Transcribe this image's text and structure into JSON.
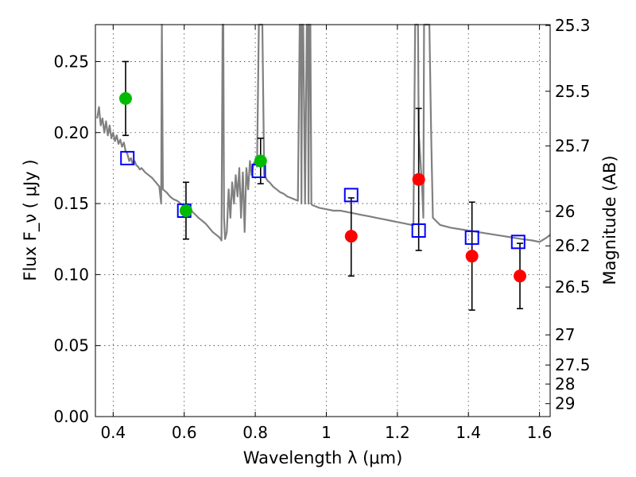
{
  "chart_data": {
    "type": "scatter",
    "xlabel": "Wavelength  λ (μm)",
    "ylabel": "Flux  F_ν  ( μJy )",
    "ylabel_right": "Magnitude (AB)",
    "xlim": [
      0.35,
      1.63
    ],
    "ylim": [
      0.0,
      0.276
    ],
    "grid": true,
    "x_ticks": [
      "0.4",
      "0.6",
      "0.8",
      "1",
      "1.2",
      "1.4",
      "1.6"
    ],
    "y_ticks": [
      "0.00",
      "0.05",
      "0.10",
      "0.15",
      "0.20",
      "0.25"
    ],
    "right_ticks": [
      "25.3",
      "25.5",
      "25.7",
      "26",
      "26.2",
      "26.5",
      "27",
      "27.5",
      "28",
      "29"
    ],
    "series": [
      {
        "kind": "template_spectrum",
        "color": "#808080",
        "x": [
          0.355,
          0.36,
          0.365,
          0.37,
          0.375,
          0.38,
          0.385,
          0.39,
          0.395,
          0.4,
          0.405,
          0.41,
          0.415,
          0.42,
          0.425,
          0.43,
          0.435,
          0.44,
          0.445,
          0.45,
          0.455,
          0.46,
          0.465,
          0.47,
          0.475,
          0.48,
          0.49,
          0.5,
          0.51,
          0.52,
          0.53,
          0.535,
          0.537,
          0.54,
          0.55,
          0.56,
          0.57,
          0.58,
          0.59,
          0.6,
          0.62,
          0.64,
          0.66,
          0.68,
          0.7,
          0.705,
          0.708,
          0.71,
          0.712,
          0.715,
          0.72,
          0.725,
          0.73,
          0.735,
          0.74,
          0.745,
          0.75,
          0.755,
          0.76,
          0.765,
          0.77,
          0.775,
          0.78,
          0.785,
          0.79,
          0.795,
          0.8,
          0.805,
          0.81,
          0.815,
          0.82,
          0.825,
          0.83,
          0.835,
          0.84,
          0.85,
          0.86,
          0.87,
          0.88,
          0.89,
          0.9,
          0.91,
          0.92,
          0.925,
          0.928,
          0.93,
          0.932,
          0.935,
          0.94,
          0.945,
          0.948,
          0.95,
          0.952,
          0.955,
          0.958,
          0.96,
          0.97,
          0.98,
          1.0,
          1.02,
          1.04,
          1.06,
          1.08,
          1.1,
          1.12,
          1.14,
          1.16,
          1.18,
          1.2,
          1.22,
          1.24,
          1.245,
          1.25,
          1.255,
          1.258,
          1.26,
          1.265,
          1.27,
          1.273,
          1.275,
          1.28,
          1.285,
          1.29,
          1.295,
          1.3,
          1.32,
          1.35,
          1.4,
          1.45,
          1.5,
          1.55,
          1.58,
          1.6,
          1.62,
          1.63
        ],
        "y": [
          0.21,
          0.218,
          0.205,
          0.21,
          0.2,
          0.208,
          0.198,
          0.205,
          0.196,
          0.2,
          0.194,
          0.198,
          0.192,
          0.195,
          0.19,
          0.193,
          0.187,
          0.185,
          0.18,
          0.182,
          0.178,
          0.18,
          0.177,
          0.176,
          0.174,
          0.175,
          0.172,
          0.17,
          0.168,
          0.165,
          0.162,
          0.15,
          0.276,
          0.16,
          0.158,
          0.155,
          0.153,
          0.152,
          0.15,
          0.148,
          0.145,
          0.14,
          0.136,
          0.13,
          0.126,
          0.124,
          0.276,
          0.276,
          0.14,
          0.125,
          0.13,
          0.16,
          0.14,
          0.165,
          0.15,
          0.17,
          0.155,
          0.175,
          0.14,
          0.172,
          0.13,
          0.175,
          0.16,
          0.18,
          0.17,
          0.178,
          0.18,
          0.176,
          0.276,
          0.276,
          0.276,
          0.17,
          0.168,
          0.166,
          0.165,
          0.162,
          0.16,
          0.158,
          0.157,
          0.155,
          0.154,
          0.153,
          0.152,
          0.276,
          0.276,
          0.15,
          0.276,
          0.276,
          0.15,
          0.276,
          0.276,
          0.15,
          0.276,
          0.276,
          0.15,
          0.149,
          0.148,
          0.147,
          0.146,
          0.145,
          0.145,
          0.144,
          0.143,
          0.142,
          0.141,
          0.14,
          0.139,
          0.138,
          0.137,
          0.136,
          0.135,
          0.135,
          0.276,
          0.276,
          0.276,
          0.2,
          0.18,
          0.16,
          0.14,
          0.276,
          0.276,
          0.276,
          0.276,
          0.2,
          0.14,
          0.135,
          0.133,
          0.131,
          0.129,
          0.127,
          0.125,
          0.124,
          0.123,
          0.126,
          0.128
        ]
      },
      {
        "kind": "model_photometry",
        "marker": "open_square",
        "color": "#0000ff",
        "x": [
          0.44,
          0.6,
          0.81,
          1.07,
          1.26,
          1.41,
          1.54
        ],
        "y": [
          0.182,
          0.145,
          0.173,
          0.156,
          0.131,
          0.126,
          0.123
        ]
      },
      {
        "kind": "observed_detection",
        "marker": "filled_circle",
        "color": "#00bb00",
        "x": [
          0.435,
          0.605,
          0.815
        ],
        "y": [
          0.224,
          0.145,
          0.18
        ],
        "yerr": [
          0.026,
          0.02,
          0.016
        ]
      },
      {
        "kind": "observed_nondetection",
        "marker": "filled_circle",
        "color": "#ff0000",
        "x": [
          1.07,
          1.26,
          1.41,
          1.545
        ],
        "y": [
          0.127,
          0.167,
          0.113,
          0.099
        ],
        "yerr_low": [
          0.028,
          0.05,
          0.038,
          0.023
        ],
        "yerr_high": [
          0.027,
          0.05,
          0.038,
          0.023
        ]
      }
    ]
  }
}
